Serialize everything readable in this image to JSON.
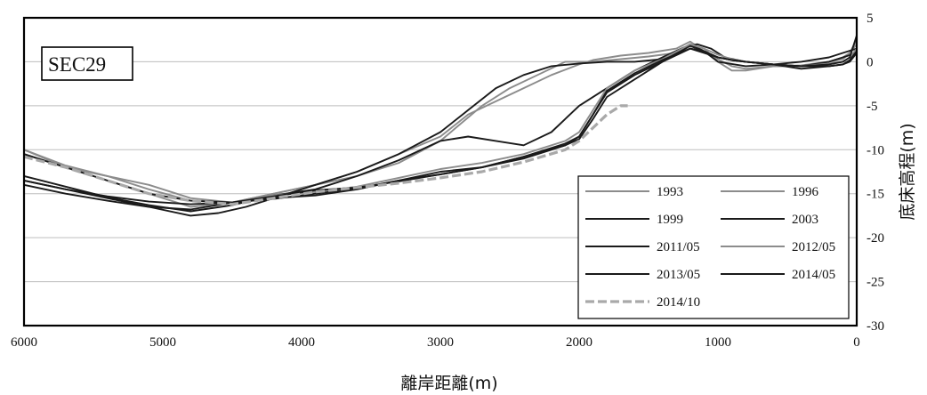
{
  "chart_data": {
    "type": "line",
    "panel_label": "SEC29",
    "xlabel": "離岸距離(m)",
    "ylabel": "底床高程(m)",
    "xlim": [
      6000,
      0
    ],
    "ylim": [
      -30,
      5
    ],
    "x_ticks": [
      "6000",
      "5000",
      "4000",
      "3000",
      "2000",
      "1000",
      "0"
    ],
    "y_ticks": [
      "5",
      "0",
      "-5",
      "-10",
      "-15",
      "-20",
      "-25",
      "-30"
    ],
    "grid": "horizontal",
    "legend_position": "bottom-right",
    "colors": {
      "grid": "#bdbdbd",
      "axis": "#000000",
      "series_dark": "#1a1a1a",
      "series_gray": "#8c8c8c",
      "dashed_2014_10": "#a9a9a9"
    },
    "series": [
      {
        "name": "1993",
        "color": "#8c8c8c",
        "x": [
          6000,
          5700,
          5400,
          5100,
          4800,
          4500,
          4200,
          3900,
          3600,
          3300,
          3000,
          2700,
          2500,
          2300,
          2100,
          2000,
          1900,
          1700,
          1500,
          1300,
          1200,
          1100,
          1000,
          900,
          800,
          600,
          400,
          200,
          100,
          50,
          0
        ],
        "y": [
          -10,
          -12,
          -13,
          -14,
          -15.5,
          -16,
          -15,
          -14,
          -13,
          -11.5,
          -9,
          -5,
          -3,
          -1.5,
          0,
          0,
          0,
          0.3,
          0.6,
          1,
          2,
          1.5,
          0,
          -1,
          -1,
          -0.5,
          -0.5,
          0,
          0.5,
          1,
          2
        ]
      },
      {
        "name": "1996",
        "color": "#8c8c8c",
        "x": [
          6000,
          5700,
          5400,
          5100,
          4800,
          4500,
          4200,
          3900,
          3600,
          3300,
          3000,
          2800,
          2600,
          2400,
          2200,
          2000,
          1900,
          1700,
          1500,
          1300,
          1200,
          1100,
          1000,
          900,
          800,
          600,
          400,
          200,
          100,
          50,
          0
        ],
        "y": [
          -10.5,
          -12,
          -13.5,
          -15,
          -16.5,
          -16,
          -15,
          -14,
          -12.5,
          -10.5,
          -8.5,
          -6,
          -4.5,
          -3,
          -1.5,
          -0.3,
          0.2,
          0.7,
          1,
          1.5,
          2.3,
          1.2,
          0.3,
          -0.5,
          -0.8,
          -0.5,
          -0.4,
          0,
          0.3,
          1,
          2.5
        ]
      },
      {
        "name": "1999",
        "color": "#1a1a1a",
        "x": [
          6000,
          5700,
          5400,
          5100,
          4800,
          4600,
          4400,
          4200,
          3900,
          3600,
          3300,
          3000,
          2800,
          2600,
          2400,
          2200,
          2000,
          1800,
          1600,
          1400,
          1300,
          1200,
          1100,
          1000,
          800,
          600,
          400,
          200,
          100,
          0
        ],
        "y": [
          -13.5,
          -14.5,
          -15.5,
          -16.5,
          -17.5,
          -17.2,
          -16.5,
          -15.5,
          -14,
          -12.5,
          -10.5,
          -8,
          -5.5,
          -3,
          -1.5,
          -0.5,
          -0.2,
          0,
          0,
          0.3,
          1,
          2,
          1.2,
          0,
          -0.5,
          -0.3,
          0,
          0.5,
          1,
          1.5
        ]
      },
      {
        "name": "2003",
        "color": "#1a1a1a",
        "x": [
          6000,
          5700,
          5400,
          5100,
          4800,
          4500,
          4200,
          3900,
          3600,
          3300,
          3000,
          2800,
          2600,
          2400,
          2200,
          2000,
          1800,
          1600,
          1400,
          1250,
          1150,
          1050,
          950,
          800,
          600,
          400,
          200,
          100,
          0
        ],
        "y": [
          -13,
          -14.2,
          -15.4,
          -16.3,
          -17,
          -16.3,
          -15.2,
          -14.5,
          -13,
          -11.2,
          -9,
          -8.5,
          -9,
          -9.5,
          -8,
          -5,
          -3,
          -1,
          0.5,
          1.6,
          2,
          1.5,
          0.5,
          0,
          -0.3,
          -0.5,
          0,
          0.5,
          1
        ]
      },
      {
        "name": "2011/05",
        "color": "#1a1a1a",
        "x": [
          6000,
          5700,
          5400,
          5100,
          4800,
          4500,
          4200,
          3900,
          3600,
          3300,
          3000,
          2700,
          2400,
          2100,
          2000,
          1900,
          1800,
          1600,
          1400,
          1200,
          1100,
          1000,
          900,
          800,
          600,
          400,
          200,
          100,
          50,
          0
        ],
        "y": [
          -14,
          -15,
          -15.8,
          -16.5,
          -16.8,
          -16,
          -15.5,
          -15.2,
          -14.5,
          -13.5,
          -12.5,
          -12,
          -10.8,
          -9.5,
          -8.5,
          -6,
          -3.5,
          -1.5,
          0,
          1.8,
          1.2,
          0.5,
          0.2,
          0,
          -0.3,
          -0.8,
          -0.5,
          -0.3,
          0,
          1
        ]
      },
      {
        "name": "2012/05",
        "color": "#8c8c8c",
        "x": [
          6000,
          5700,
          5400,
          5100,
          4800,
          4500,
          4200,
          3900,
          3600,
          3300,
          3000,
          2700,
          2400,
          2100,
          2000,
          1900,
          1800,
          1600,
          1400,
          1200,
          1100,
          1000,
          900,
          800,
          600,
          400,
          200,
          100,
          50,
          0
        ],
        "y": [
          -10,
          -11.8,
          -13,
          -14.5,
          -15.8,
          -16,
          -15.2,
          -14.8,
          -14.2,
          -13.2,
          -12.2,
          -11.5,
          -10.5,
          -9,
          -8,
          -5.5,
          -3,
          -1,
          0.3,
          2,
          1.5,
          0.8,
          0.3,
          0,
          -0.3,
          -0.5,
          -0.2,
          0,
          0.5,
          1.5
        ]
      },
      {
        "name": "2013/05",
        "color": "#1a1a1a",
        "x": [
          6000,
          5700,
          5400,
          5100,
          4800,
          4500,
          4200,
          3900,
          3600,
          3300,
          3000,
          2700,
          2400,
          2100,
          2000,
          1900,
          1800,
          1600,
          1400,
          1200,
          1100,
          1000,
          900,
          800,
          600,
          400,
          200,
          100,
          50,
          0
        ],
        "y": [
          -13.5,
          -14.5,
          -15.3,
          -15.9,
          -16.2,
          -16,
          -15.6,
          -15,
          -14.4,
          -13.5,
          -12.8,
          -12,
          -11,
          -9.5,
          -8.8,
          -6.5,
          -4,
          -2,
          0,
          1.5,
          1,
          0.5,
          0.2,
          0,
          -0.3,
          -0.5,
          -0.5,
          -0.3,
          0.2,
          1.2
        ]
      },
      {
        "name": "2014/05",
        "color": "#1a1a1a",
        "x": [
          6000,
          5700,
          5400,
          5100,
          4800,
          4500,
          4200,
          3900,
          3600,
          3300,
          3000,
          2700,
          2400,
          2100,
          2000,
          1900,
          1800,
          1600,
          1400,
          1200,
          1100,
          1000,
          900,
          800,
          600,
          400,
          200,
          100,
          50,
          0
        ],
        "y": [
          -10.5,
          -12,
          -13.5,
          -15,
          -15.8,
          -16,
          -15.3,
          -14.6,
          -14.3,
          -13.6,
          -12.8,
          -12,
          -10.8,
          -9.3,
          -8.5,
          -6,
          -3.3,
          -1.3,
          0.2,
          1.5,
          1.2,
          0.5,
          0.2,
          0,
          -0.3,
          -0.5,
          -0.3,
          0,
          0.5,
          3
        ]
      },
      {
        "name": "2014/10",
        "color": "#a9a9a9",
        "dashed": true,
        "x": [
          6000,
          5700,
          5400,
          5100,
          4800,
          4500,
          4200,
          3900,
          3600,
          3300,
          3000,
          2700,
          2400,
          2100,
          2000,
          1900,
          1800,
          1700,
          1650
        ],
        "y": [
          -10.8,
          -12,
          -13.5,
          -15,
          -15.8,
          -16.2,
          -15.5,
          -14.8,
          -14.3,
          -13.8,
          -13.2,
          -12.5,
          -11.4,
          -10,
          -9,
          -7.5,
          -6,
          -5,
          -5
        ]
      }
    ]
  }
}
